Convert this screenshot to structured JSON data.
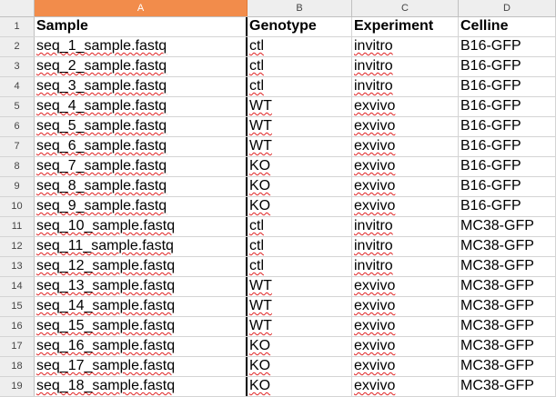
{
  "columns": [
    "A",
    "B",
    "C",
    "D"
  ],
  "selected_column": "A",
  "header": {
    "row": "1",
    "a": "Sample",
    "b": "Genotype",
    "c": "Experiment",
    "d": "Celline"
  },
  "rows": [
    {
      "row": "2",
      "a": "seq_1_sample.fastq",
      "b": "ctl",
      "c": "invitro",
      "d": "B16-GFP"
    },
    {
      "row": "3",
      "a": "seq_2_sample.fastq",
      "b": "ctl",
      "c": "invitro",
      "d": "B16-GFP"
    },
    {
      "row": "4",
      "a": "seq_3_sample.fastq",
      "b": "ctl",
      "c": "invitro",
      "d": "B16-GFP"
    },
    {
      "row": "5",
      "a": "seq_4_sample.fastq",
      "b": "WT",
      "c": "exvivo",
      "d": "B16-GFP"
    },
    {
      "row": "6",
      "a": "seq_5_sample.fastq",
      "b": "WT",
      "c": "exvivo",
      "d": "B16-GFP"
    },
    {
      "row": "7",
      "a": "seq_6_sample.fastq",
      "b": "WT",
      "c": "exvivo",
      "d": "B16-GFP"
    },
    {
      "row": "8",
      "a": "seq_7_sample.fastq",
      "b": "KO",
      "c": "exvivo",
      "d": "B16-GFP"
    },
    {
      "row": "9",
      "a": "seq_8_sample.fastq",
      "b": "KO",
      "c": "exvivo",
      "d": "B16-GFP"
    },
    {
      "row": "10",
      "a": "seq_9_sample.fastq",
      "b": "KO",
      "c": "exvivo",
      "d": "B16-GFP"
    },
    {
      "row": "11",
      "a": "seq_10_sample.fastq",
      "b": "ctl",
      "c": "invitro",
      "d": "MC38-GFP"
    },
    {
      "row": "12",
      "a": "seq_11_sample.fastq",
      "b": "ctl",
      "c": "invitro",
      "d": "MC38-GFP"
    },
    {
      "row": "13",
      "a": "seq_12_sample.fastq",
      "b": "ctl",
      "c": "invitro",
      "d": "MC38-GFP"
    },
    {
      "row": "14",
      "a": "seq_13_sample.fastq",
      "b": "WT",
      "c": "exvivo",
      "d": "MC38-GFP"
    },
    {
      "row": "15",
      "a": "seq_14_sample.fastq",
      "b": "WT",
      "c": "exvivo",
      "d": "MC38-GFP"
    },
    {
      "row": "16",
      "a": "seq_15_sample.fastq",
      "b": "WT",
      "c": "exvivo",
      "d": "MC38-GFP"
    },
    {
      "row": "17",
      "a": "seq_16_sample.fastq",
      "b": "KO",
      "c": "exvivo",
      "d": "MC38-GFP"
    },
    {
      "row": "18",
      "a": "seq_17_sample.fastq",
      "b": "KO",
      "c": "exvivo",
      "d": "MC38-GFP"
    },
    {
      "row": "19",
      "a": "seq_18_sample.fastq",
      "b": "KO",
      "c": "exvivo",
      "d": "MC38-GFP"
    }
  ]
}
